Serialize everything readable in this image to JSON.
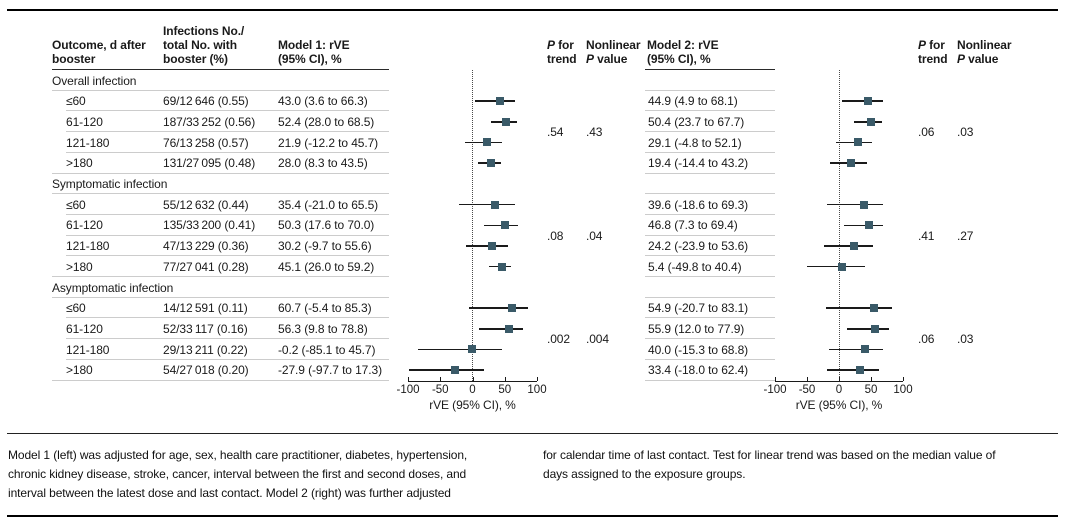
{
  "columns": {
    "outcome": "Outcome, d after\nbooster",
    "infections": "Infections No./\ntotal No. with\nbooster (%)",
    "model1": "Model 1: rVE\n(95% CI), %",
    "p_trend": "P for\ntrend",
    "nonlinear": "Nonlinear\nP value",
    "model2": "Model 2: rVE\n(95% CI), %"
  },
  "groups": [
    {
      "label": "Overall infection",
      "model1_p": {
        "trend": ".54",
        "nonlinear": ".43"
      },
      "model2_p": {
        "trend": ".06",
        "nonlinear": ".03"
      },
      "rows": [
        {
          "outcome": "≤60",
          "infections": "69/12 646 (0.55)",
          "model1": "43.0 (3.6 to 66.3)",
          "model2": "44.9 (4.9 to 68.1)"
        },
        {
          "outcome": "61-120",
          "infections": "187/33 252 (0.56)",
          "model1": "52.4 (28.0 to 68.5)",
          "model2": "50.4 (23.7 to 67.7)"
        },
        {
          "outcome": "121-180",
          "infections": "76/13 258 (0.57)",
          "model1": "21.9 (-12.2 to 45.7)",
          "model2": "29.1 (-4.8 to 52.1)"
        },
        {
          "outcome": ">180",
          "infections": "131/27 095 (0.48)",
          "model1": "28.0 (8.3 to 43.5)",
          "model2": "19.4 (-14.4 to 43.2)"
        }
      ]
    },
    {
      "label": "Symptomatic infection",
      "model1_p": {
        "trend": ".08",
        "nonlinear": ".04"
      },
      "model2_p": {
        "trend": ".41",
        "nonlinear": ".27"
      },
      "rows": [
        {
          "outcome": "≤60",
          "infections": "55/12 632 (0.44)",
          "model1": "35.4 (-21.0 to 65.5)",
          "model2": "39.6 (-18.6 to 69.3)"
        },
        {
          "outcome": "61-120",
          "infections": "135/33 200 (0.41)",
          "model1": "50.3 (17.6 to 70.0)",
          "model2": "46.8 (7.3 to 69.4)"
        },
        {
          "outcome": "121-180",
          "infections": "47/13 229 (0.36)",
          "model1": "30.2 (-9.7 to 55.6)",
          "model2": "24.2 (-23.9 to 53.6)"
        },
        {
          "outcome": ">180",
          "infections": "77/27 041 (0.28)",
          "model1": "45.1 (26.0 to 59.2)",
          "model2": "5.4 (-49.8 to 40.4)"
        }
      ]
    },
    {
      "label": "Asymptomatic infection",
      "model1_p": {
        "trend": ".002",
        "nonlinear": ".004"
      },
      "model2_p": {
        "trend": ".06",
        "nonlinear": ".03"
      },
      "rows": [
        {
          "outcome": "≤60",
          "infections": "14/12 591 (0.11)",
          "model1": "60.7 (-5.4 to 85.3)",
          "model2": "54.9 (-20.7 to 83.1)"
        },
        {
          "outcome": "61-120",
          "infections": "52/33 117 (0.16)",
          "model1": "56.3 (9.8 to 78.8)",
          "model2": "55.9 (12.0 to 77.9)"
        },
        {
          "outcome": "121-180",
          "infections": "29/13 211 (0.22)",
          "model1": "-0.2 (-85.1 to 45.7)",
          "model2": "40.0 (-15.3 to 68.8)"
        },
        {
          "outcome": ">180",
          "infections": "54/27 018 (0.20)",
          "model1": "-27.9 (-97.7 to 17.3)",
          "model2": "33.4 (-18.0 to 62.4)"
        }
      ]
    }
  ],
  "chart_data": [
    {
      "type": "scatter",
      "variant": "forest",
      "title": "Model 1: rVE (95% CI), %",
      "xlabel": "rVE (95% CI), %",
      "xlim": [
        -100,
        100
      ],
      "xticks": [
        -100,
        -50,
        0,
        50,
        100
      ],
      "reference_line": 0,
      "points": [
        {
          "group": "Overall infection",
          "category": "≤60",
          "est": 43.0,
          "lo": 3.6,
          "hi": 66.3
        },
        {
          "group": "Overall infection",
          "category": "61-120",
          "est": 52.4,
          "lo": 28.0,
          "hi": 68.5
        },
        {
          "group": "Overall infection",
          "category": "121-180",
          "est": 21.9,
          "lo": -12.2,
          "hi": 45.7
        },
        {
          "group": "Overall infection",
          "category": ">180",
          "est": 28.0,
          "lo": 8.3,
          "hi": 43.5
        },
        {
          "group": "Symptomatic infection",
          "category": "≤60",
          "est": 35.4,
          "lo": -21.0,
          "hi": 65.5
        },
        {
          "group": "Symptomatic infection",
          "category": "61-120",
          "est": 50.3,
          "lo": 17.6,
          "hi": 70.0
        },
        {
          "group": "Symptomatic infection",
          "category": "121-180",
          "est": 30.2,
          "lo": -9.7,
          "hi": 55.6
        },
        {
          "group": "Symptomatic infection",
          "category": ">180",
          "est": 45.1,
          "lo": 26.0,
          "hi": 59.2
        },
        {
          "group": "Asymptomatic infection",
          "category": "≤60",
          "est": 60.7,
          "lo": -5.4,
          "hi": 85.3
        },
        {
          "group": "Asymptomatic infection",
          "category": "61-120",
          "est": 56.3,
          "lo": 9.8,
          "hi": 78.8
        },
        {
          "group": "Asymptomatic infection",
          "category": "121-180",
          "est": -0.2,
          "lo": -85.1,
          "hi": 45.7
        },
        {
          "group": "Asymptomatic infection",
          "category": ">180",
          "est": -27.9,
          "lo": -97.7,
          "hi": 17.3
        }
      ]
    },
    {
      "type": "scatter",
      "variant": "forest",
      "title": "Model 2: rVE (95% CI), %",
      "xlabel": "rVE (95% CI), %",
      "xlim": [
        -100,
        100
      ],
      "xticks": [
        -100,
        -50,
        0,
        50,
        100
      ],
      "reference_line": 0,
      "points": [
        {
          "group": "Overall infection",
          "category": "≤60",
          "est": 44.9,
          "lo": 4.9,
          "hi": 68.1
        },
        {
          "group": "Overall infection",
          "category": "61-120",
          "est": 50.4,
          "lo": 23.7,
          "hi": 67.7
        },
        {
          "group": "Overall infection",
          "category": "121-180",
          "est": 29.1,
          "lo": -4.8,
          "hi": 52.1
        },
        {
          "group": "Overall infection",
          "category": ">180",
          "est": 19.4,
          "lo": -14.4,
          "hi": 43.2
        },
        {
          "group": "Symptomatic infection",
          "category": "≤60",
          "est": 39.6,
          "lo": -18.6,
          "hi": 69.3
        },
        {
          "group": "Symptomatic infection",
          "category": "61-120",
          "est": 46.8,
          "lo": 7.3,
          "hi": 69.4
        },
        {
          "group": "Symptomatic infection",
          "category": "121-180",
          "est": 24.2,
          "lo": -23.9,
          "hi": 53.6
        },
        {
          "group": "Symptomatic infection",
          "category": ">180",
          "est": 5.4,
          "lo": -49.8,
          "hi": 40.4
        },
        {
          "group": "Asymptomatic infection",
          "category": "≤60",
          "est": 54.9,
          "lo": -20.7,
          "hi": 83.1
        },
        {
          "group": "Asymptomatic infection",
          "category": "61-120",
          "est": 55.9,
          "lo": 12.0,
          "hi": 77.9
        },
        {
          "group": "Asymptomatic infection",
          "category": "121-180",
          "est": 40.0,
          "lo": -15.3,
          "hi": 68.8
        },
        {
          "group": "Asymptomatic infection",
          "category": ">180",
          "est": 33.4,
          "lo": -18.0,
          "hi": 62.4
        }
      ]
    }
  ],
  "footnotes": {
    "left": "Model 1 (left) was adjusted for age, sex, health care practitioner, diabetes, hypertension,\nchronic kidney disease, stroke, cancer, interval between the first and second doses, and\ninterval between the latest dose and last contact. Model 2 (right) was further adjusted",
    "right": "for calendar time of last contact. Test for linear trend was based on the median value of\ndays assigned to the exposure groups."
  },
  "colors": {
    "marker": "#3a5a68",
    "ci_line": "#1a1a1a",
    "separator": "#cccccc",
    "header_rule": "#2a2a2a",
    "frame_rule": "#000000"
  }
}
